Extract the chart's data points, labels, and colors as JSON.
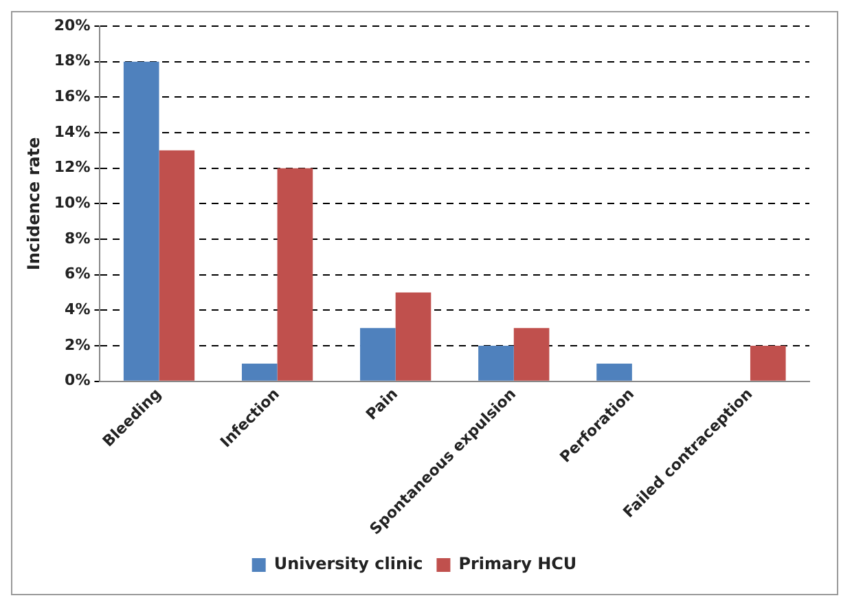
{
  "chart_data": {
    "type": "bar",
    "ylabel": "Incidence rate",
    "categories": [
      "Bleeding",
      "Infection",
      "Pain",
      "Spontaneous expulsion",
      "Perforation",
      "Failed contraception"
    ],
    "series": [
      {
        "name": "University clinic",
        "color": "#4f81bd",
        "values": [
          18,
          1,
          3,
          2,
          1,
          0
        ]
      },
      {
        "name": "Primary HCU",
        "color": "#c0504d",
        "values": [
          13,
          12,
          5,
          3,
          0,
          2
        ]
      }
    ],
    "ylim": [
      0,
      20
    ],
    "yticks": [
      {
        "value": 0,
        "label": "0%"
      },
      {
        "value": 2,
        "label": "2%"
      },
      {
        "value": 4,
        "label": "4%"
      },
      {
        "value": 6,
        "label": "6%"
      },
      {
        "value": 8,
        "label": "8%"
      },
      {
        "value": 10,
        "label": "10%"
      },
      {
        "value": 12,
        "label": "12%"
      },
      {
        "value": 14,
        "label": "14%"
      },
      {
        "value": 16,
        "label": "16%"
      },
      {
        "value": 18,
        "label": "18%"
      },
      {
        "value": 20,
        "label": "20%"
      }
    ],
    "grid": "y",
    "line_style": "dashed",
    "legend": "bottom"
  }
}
